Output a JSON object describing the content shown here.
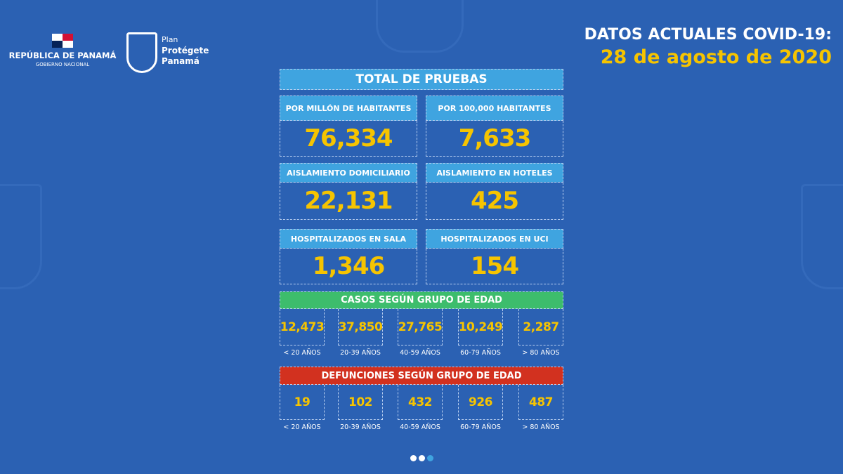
{
  "branding": {
    "republic": "REPÚBLICA DE PANAMÁ",
    "government": "GOBIERNO NACIONAL",
    "plan_line1": "Plan",
    "plan_line2": "Protégete",
    "plan_line3": "Panamá"
  },
  "header": {
    "title": "DATOS ACTUALES COVID-19:",
    "date": "28 de agosto de 2020"
  },
  "panel": {
    "title": "TOTAL DE PRUEBAS",
    "stats": [
      {
        "label": "POR MILLÓN DE HABITANTES",
        "value": "76,334"
      },
      {
        "label": "POR 100,000 HABITANTES",
        "value": "7,633"
      },
      {
        "label": "AISLAMIENTO DOMICILIARIO",
        "value": "22,131"
      },
      {
        "label": "AISLAMIENTO EN HOTELES",
        "value": "425"
      },
      {
        "label": "HOSPITALIZADOS EN SALA",
        "value": "1,346"
      },
      {
        "label": "HOSPITALIZADOS EN UCI",
        "value": "154"
      }
    ],
    "cases": {
      "title": "CASOS SEGÚN GRUPO DE EDAD",
      "color": "#3dbd6c",
      "groups": [
        {
          "value": "12,473",
          "label": "< 20 AÑOS"
        },
        {
          "value": "37,850",
          "label": "20-39 AÑOS"
        },
        {
          "value": "27,765",
          "label": "40-59 AÑOS"
        },
        {
          "value": "10,249",
          "label": "60-79 AÑOS"
        },
        {
          "value": "2,287",
          "label": "> 80 AÑOS"
        }
      ]
    },
    "deaths": {
      "title": "DEFUNCIONES SEGÚN GRUPO DE EDAD",
      "color": "#d2311f",
      "groups": [
        {
          "value": "19",
          "label": "< 20 AÑOS"
        },
        {
          "value": "102",
          "label": "20-39 AÑOS"
        },
        {
          "value": "432",
          "label": "40-59 AÑOS"
        },
        {
          "value": "926",
          "label": "60-79 AÑOS"
        },
        {
          "value": "487",
          "label": "> 80 AÑOS"
        }
      ]
    }
  },
  "pagination": {
    "pages": 3,
    "active": 3
  },
  "colors": {
    "background": "#2b61b3",
    "accent_yellow": "#f6c400",
    "header_blue": "#3fa4e0"
  }
}
